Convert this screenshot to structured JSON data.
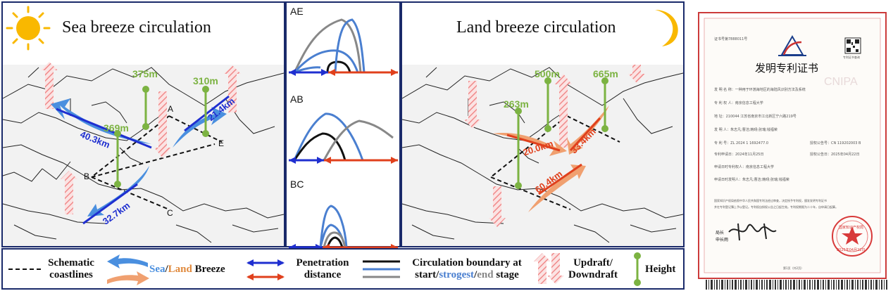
{
  "panels": {
    "sea": {
      "title": "Sea breeze circulation"
    },
    "land": {
      "title": "Land breeze circulation"
    }
  },
  "sea_heights": {
    "h1": "375m",
    "h2": "310m",
    "h3": "369m"
  },
  "land_heights": {
    "h1": "500m",
    "h2": "665m",
    "h3": "263m"
  },
  "sea_distances": {
    "d1": "40.3km",
    "d2": "21.4km",
    "d3": "32.7km"
  },
  "land_distances": {
    "d1": "20.0km",
    "d2": "33.4km",
    "d3": "60.4km"
  },
  "points": {
    "A": "A",
    "B": "B",
    "C": "C",
    "E": "E"
  },
  "subplots": {
    "ae": "AE",
    "ab": "AB",
    "bc": "BC"
  },
  "legend": {
    "coast_l1": "Schematic",
    "coast_l2": "coastlines",
    "breeze_sea": "Sea",
    "breeze_slash": "/",
    "breeze_land": "Land",
    "breeze_word": " Breeze",
    "pen_l1": "Penetration",
    "pen_l2": "distance",
    "circ_l1": "Circulation boundary at",
    "circ_start": "start",
    "circ_strong": "strogest",
    "circ_end": "end",
    "circ_stage": " stage",
    "up_l1": "Updraft/",
    "up_l2": "Downdraft",
    "height": "Height"
  },
  "certificate": {
    "cert_no": "证书号第7888011号",
    "title": "发明专利证书",
    "name_row": "发 明 名 称：一种用于环渤海地区的海陆风识别方法及系统",
    "owner_row": "专 利 权 人：南京信息工程大学",
    "addr_row": "地       址：210044 江苏省南京市江北新区宁六路219号",
    "inventor_row": "发 明 人：朱志凡;曹洁;韩旸;张瑞;钱福荣",
    "patent_no": "专 利 号：ZL 2024 1 1692477.0",
    "grant_no": "授权公告号：CN 119202003 B",
    "apply_date": "专利申请日：2024年11月25日",
    "grant_date": "授权公告日：2025年04月22日",
    "holder2": "申请日时专利权人：南京信息工程大学",
    "inventor2": "申请日时发明人：朱志凡;曹洁;韩旸;张瑞;钱福荣",
    "note1": "国家知识产权局依照中华人民共和国专利法经过审查，决定授予专利权，颁发发明专利证书",
    "note2": "并在专利登记簿上予以登记。专利权自授权公告之日起生效。专利权期限为二十年，自申请日起算。",
    "sign_title": "局长",
    "sign_name": "申长雨",
    "seal_text": "国家知识产权局",
    "seal_date": "2025年04月22日",
    "page": "第1页（共2页）",
    "watermark": "CNIPA",
    "qr_note": "专利证书查询"
  },
  "colors": {
    "sea_blue": "#4a8fdf",
    "land_orange": "#f0a070",
    "distance_blue": "#1f2fd0",
    "distance_red": "#e0401c",
    "height_green": "#7cb342",
    "updraft": "#f2a5a5",
    "boundary_start": "#111111",
    "boundary_strongest": "#4a7fd0",
    "boundary_end": "#888888"
  }
}
